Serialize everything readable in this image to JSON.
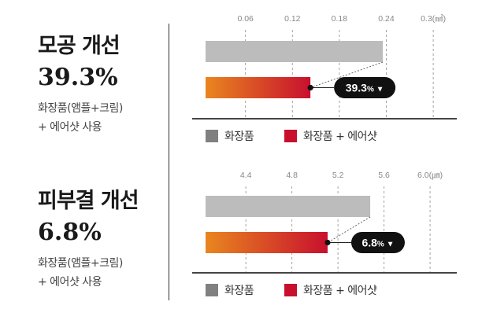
{
  "panels": [
    {
      "title": "모공 개선",
      "percent": "39.3%",
      "desc_line1": "화장품(앰플+크림)",
      "desc_line2": "+ 에어샷 사용"
    },
    {
      "title": "피부결 개선",
      "percent": "6.8%",
      "desc_line1": "화장품(앰플+크림)",
      "desc_line2": "+ 에어샷 사용"
    }
  ],
  "colors": {
    "cosmetic": "#bcbcbc",
    "combo_start": "#e9861f",
    "combo_end": "#c8102e",
    "legend_gray": "#808080",
    "legend_red": "#c8102e",
    "badge_bg": "#111111",
    "axis": "#444444"
  },
  "chart_data": [
    {
      "type": "bar",
      "orientation": "horizontal",
      "ticks": [
        "0.06",
        "0.12",
        "0.18",
        "0.24",
        "0.3(㎟)"
      ],
      "tick_values": [
        0.06,
        0.12,
        0.18,
        0.24,
        0.3
      ],
      "xlim": [
        0.009,
        0.318
      ],
      "series": [
        {
          "name": "화장품",
          "value": 0.2355
        },
        {
          "name": "화장품 + 에어샷",
          "value": 0.143
        }
      ],
      "annotation": {
        "value": "39.3",
        "unit": "%",
        "marker": "▼"
      },
      "legend": [
        "화장품",
        "화장품 + 에어샷"
      ]
    },
    {
      "type": "bar",
      "orientation": "horizontal",
      "ticks": [
        "4.4",
        "4.8",
        "5.2",
        "5.6",
        "6.0(㎛)"
      ],
      "tick_values": [
        4.4,
        4.8,
        5.2,
        5.6,
        6.0
      ],
      "xlim": [
        4.05,
        6.15
      ],
      "series": [
        {
          "name": "화장품",
          "value": 5.48
        },
        {
          "name": "화장품 + 에어샷",
          "value": 5.11
        }
      ],
      "annotation": {
        "value": "6.8",
        "unit": "%",
        "marker": "▼"
      },
      "legend": [
        "화장품",
        "화장품 + 에어샷"
      ]
    }
  ]
}
